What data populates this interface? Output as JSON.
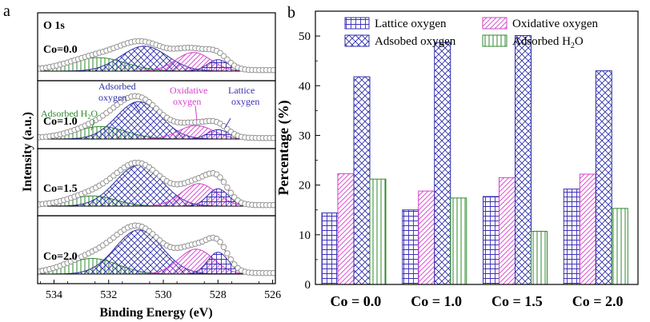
{
  "colors": {
    "lattice": "#3a2fb5",
    "oxidative": "#d63fcb",
    "adsorbed": "#2d2fa8",
    "water": "#2f8a2f",
    "envelope": "#d8a080",
    "fit": "#c0392b",
    "baseline": "#000000",
    "points": "#8a8a8a"
  },
  "chart_data": [
    {
      "type": "xps-stack",
      "panel_letter": "a",
      "xlabel": "Binding Energy (eV)",
      "ylabel": "Intensity (a.u.)",
      "xlim": [
        534.6,
        525.9
      ],
      "xticks": [
        534,
        532,
        530,
        528,
        526
      ],
      "top_label": "O 1s",
      "panels": [
        {
          "label": "Co=0.0",
          "components": [
            {
              "name": "Lattice oxygen",
              "center": 528.0,
              "amplitude": 0.22,
              "fwhm": 0.9
            },
            {
              "name": "Oxidative oxygen",
              "center": 528.9,
              "amplitude": 0.36,
              "fwhm": 1.5
            },
            {
              "name": "Adsorbed oxygen",
              "center": 530.7,
              "amplitude": 0.48,
              "fwhm": 2.0
            },
            {
              "name": "Adsorbed H2O",
              "center": 532.4,
              "amplitude": 0.26,
              "fwhm": 2.4
            }
          ]
        },
        {
          "label": "Co=1.0",
          "annotations": {
            "adsorbed": [
              "Adsorbed",
              "oxygen"
            ],
            "oxidative": [
              "Oxidative",
              "oxygen"
            ],
            "lattice": [
              "Lattice",
              "oxygen"
            ],
            "water": "Adsorbed H",
            "water_sub": "2",
            "water_end": "O"
          },
          "components": [
            {
              "name": "Lattice oxygen",
              "center": 528.0,
              "amplitude": 0.18,
              "fwhm": 0.9
            },
            {
              "name": "Oxidative oxygen",
              "center": 528.8,
              "amplitude": 0.26,
              "fwhm": 1.5
            },
            {
              "name": "Adsorbed oxygen",
              "center": 530.9,
              "amplitude": 0.72,
              "fwhm": 1.9
            },
            {
              "name": "Adsorbed H2O",
              "center": 532.3,
              "amplitude": 0.24,
              "fwhm": 2.2
            }
          ]
        },
        {
          "label": "Co=1.5",
          "components": [
            {
              "name": "Lattice oxygen",
              "center": 528.0,
              "amplitude": 0.34,
              "fwhm": 0.9
            },
            {
              "name": "Oxidative oxygen",
              "center": 528.7,
              "amplitude": 0.44,
              "fwhm": 1.5
            },
            {
              "name": "Adsorbed oxygen",
              "center": 530.9,
              "amplitude": 0.8,
              "fwhm": 2.0
            },
            {
              "name": "Adsorbed H2O",
              "center": 532.6,
              "amplitude": 0.2,
              "fwhm": 2.0
            }
          ]
        },
        {
          "label": "Co=2.0",
          "components": [
            {
              "name": "Lattice oxygen",
              "center": 528.0,
              "amplitude": 0.42,
              "fwhm": 0.9
            },
            {
              "name": "Oxidative oxygen",
              "center": 528.8,
              "amplitude": 0.48,
              "fwhm": 1.5
            },
            {
              "name": "Adsorbed oxygen",
              "center": 530.9,
              "amplitude": 0.85,
              "fwhm": 2.0
            },
            {
              "name": "Adsorbed H2O",
              "center": 532.6,
              "amplitude": 0.3,
              "fwhm": 2.2
            }
          ]
        }
      ]
    },
    {
      "type": "bar",
      "panel_letter": "b",
      "ylabel": "Percentage (%)",
      "ylim": [
        0,
        55
      ],
      "yticks": [
        0,
        10,
        20,
        30,
        40,
        50
      ],
      "categories": [
        "Co = 0.0",
        "Co = 1.0",
        "Co = 1.5",
        "Co = 2.0"
      ],
      "series": [
        {
          "name": "Lattice oxygen",
          "values": [
            14.4,
            15.0,
            17.7,
            19.2
          ]
        },
        {
          "name": "Oxidative oxygen",
          "values": [
            22.3,
            18.8,
            21.5,
            22.2
          ]
        },
        {
          "name": "Adsobed oxygen",
          "values": [
            41.8,
            48.7,
            50.1,
            43.0
          ]
        },
        {
          "name": "Adsorbed H",
          "name_sub": "2",
          "name_end": "O",
          "values": [
            21.2,
            17.4,
            10.7,
            15.3
          ]
        }
      ]
    }
  ]
}
